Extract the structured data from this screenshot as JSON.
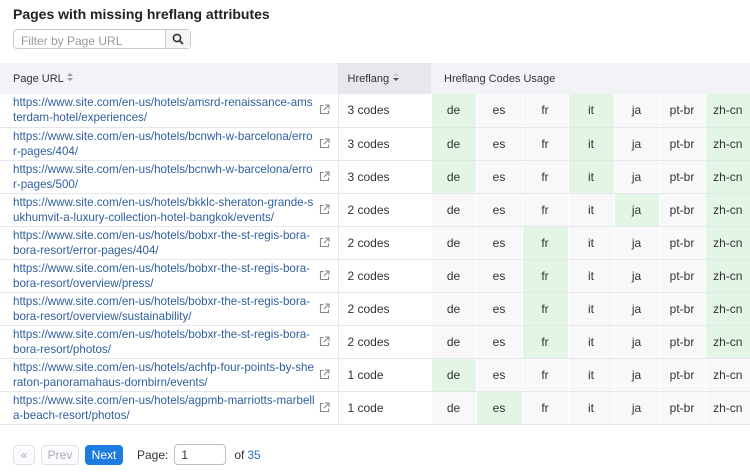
{
  "header": {
    "title": "Pages with missing hreflang attributes",
    "filter_placeholder": "Filter by Page URL"
  },
  "table": {
    "columns": [
      "Page URL",
      "Hreflang",
      "Hreflang Codes Usage"
    ],
    "rows": [
      {
        "url": "https://www.site.com/en-us/hotels/amsrd-renaissance-amsterdam-hotel/experiences/",
        "hreflang": "3 codes",
        "codes": [
          {
            "label": "de",
            "used": true
          },
          {
            "label": "es",
            "used": false
          },
          {
            "label": "fr",
            "used": false
          },
          {
            "label": "it",
            "used": true
          },
          {
            "label": "ja",
            "used": false
          },
          {
            "label": "pt-br",
            "used": false
          },
          {
            "label": "zh-cn",
            "used": true
          }
        ]
      },
      {
        "url": "https://www.site.com/en-us/hotels/bcnwh-w-barcelona/error-pages/404/",
        "hreflang": "3 codes",
        "codes": [
          {
            "label": "de",
            "used": true
          },
          {
            "label": "es",
            "used": false
          },
          {
            "label": "fr",
            "used": false
          },
          {
            "label": "it",
            "used": true
          },
          {
            "label": "ja",
            "used": false
          },
          {
            "label": "pt-br",
            "used": false
          },
          {
            "label": "zh-cn",
            "used": true
          }
        ]
      },
      {
        "url": "https://www.site.com/en-us/hotels/bcnwh-w-barcelona/error-pages/500/",
        "hreflang": "3 codes",
        "codes": [
          {
            "label": "de",
            "used": true
          },
          {
            "label": "es",
            "used": false
          },
          {
            "label": "fr",
            "used": false
          },
          {
            "label": "it",
            "used": true
          },
          {
            "label": "ja",
            "used": false
          },
          {
            "label": "pt-br",
            "used": false
          },
          {
            "label": "zh-cn",
            "used": true
          }
        ]
      },
      {
        "url": "https://www.site.com/en-us/hotels/bkklc-sheraton-grande-sukhumvit-a-luxury-collection-hotel-bangkok/events/",
        "hreflang": "2 codes",
        "codes": [
          {
            "label": "de",
            "used": false
          },
          {
            "label": "es",
            "used": false
          },
          {
            "label": "fr",
            "used": false
          },
          {
            "label": "it",
            "used": false
          },
          {
            "label": "ja",
            "used": true
          },
          {
            "label": "pt-br",
            "used": false
          },
          {
            "label": "zh-cn",
            "used": true
          }
        ]
      },
      {
        "url": "https://www.site.com/en-us/hotels/bobxr-the-st-regis-bora-bora-resort/error-pages/404/",
        "hreflang": "2 codes",
        "codes": [
          {
            "label": "de",
            "used": false
          },
          {
            "label": "es",
            "used": false
          },
          {
            "label": "fr",
            "used": true
          },
          {
            "label": "it",
            "used": false
          },
          {
            "label": "ja",
            "used": false
          },
          {
            "label": "pt-br",
            "used": false
          },
          {
            "label": "zh-cn",
            "used": true
          }
        ]
      },
      {
        "url": "https://www.site.com/en-us/hotels/bobxr-the-st-regis-bora-bora-resort/overview/press/",
        "hreflang": "2 codes",
        "codes": [
          {
            "label": "de",
            "used": false
          },
          {
            "label": "es",
            "used": false
          },
          {
            "label": "fr",
            "used": true
          },
          {
            "label": "it",
            "used": false
          },
          {
            "label": "ja",
            "used": false
          },
          {
            "label": "pt-br",
            "used": false
          },
          {
            "label": "zh-cn",
            "used": true
          }
        ]
      },
      {
        "url": "https://www.site.com/en-us/hotels/bobxr-the-st-regis-bora-bora-resort/overview/sustainability/",
        "hreflang": "2 codes",
        "codes": [
          {
            "label": "de",
            "used": false
          },
          {
            "label": "es",
            "used": false
          },
          {
            "label": "fr",
            "used": true
          },
          {
            "label": "it",
            "used": false
          },
          {
            "label": "ja",
            "used": false
          },
          {
            "label": "pt-br",
            "used": false
          },
          {
            "label": "zh-cn",
            "used": true
          }
        ]
      },
      {
        "url": "https://www.site.com/en-us/hotels/bobxr-the-st-regis-bora-bora-resort/photos/",
        "hreflang": "2 codes",
        "codes": [
          {
            "label": "de",
            "used": false
          },
          {
            "label": "es",
            "used": false
          },
          {
            "label": "fr",
            "used": true
          },
          {
            "label": "it",
            "used": false
          },
          {
            "label": "ja",
            "used": false
          },
          {
            "label": "pt-br",
            "used": false
          },
          {
            "label": "zh-cn",
            "used": true
          }
        ]
      },
      {
        "url": "https://www.site.com/en-us/hotels/achfp-four-points-by-sheraton-panoramahaus-dornbirn/events/",
        "hreflang": "1 code",
        "codes": [
          {
            "label": "de",
            "used": true
          },
          {
            "label": "es",
            "used": false
          },
          {
            "label": "fr",
            "used": false
          },
          {
            "label": "it",
            "used": false
          },
          {
            "label": "ja",
            "used": false
          },
          {
            "label": "pt-br",
            "used": false
          },
          {
            "label": "zh-cn",
            "used": false
          }
        ]
      },
      {
        "url": "https://www.site.com/en-us/hotels/agpmb-marriotts-marbella-beach-resort/photos/",
        "hreflang": "1 code",
        "codes": [
          {
            "label": "de",
            "used": false
          },
          {
            "label": "es",
            "used": true
          },
          {
            "label": "fr",
            "used": false
          },
          {
            "label": "it",
            "used": false
          },
          {
            "label": "ja",
            "used": false
          },
          {
            "label": "pt-br",
            "used": false
          },
          {
            "label": "zh-cn",
            "used": false
          }
        ]
      }
    ]
  },
  "pagination": {
    "prev": "Prev",
    "next": "Next",
    "page_label": "Page:",
    "page_value": "1",
    "of_label": "of",
    "total_pages": "35"
  }
}
